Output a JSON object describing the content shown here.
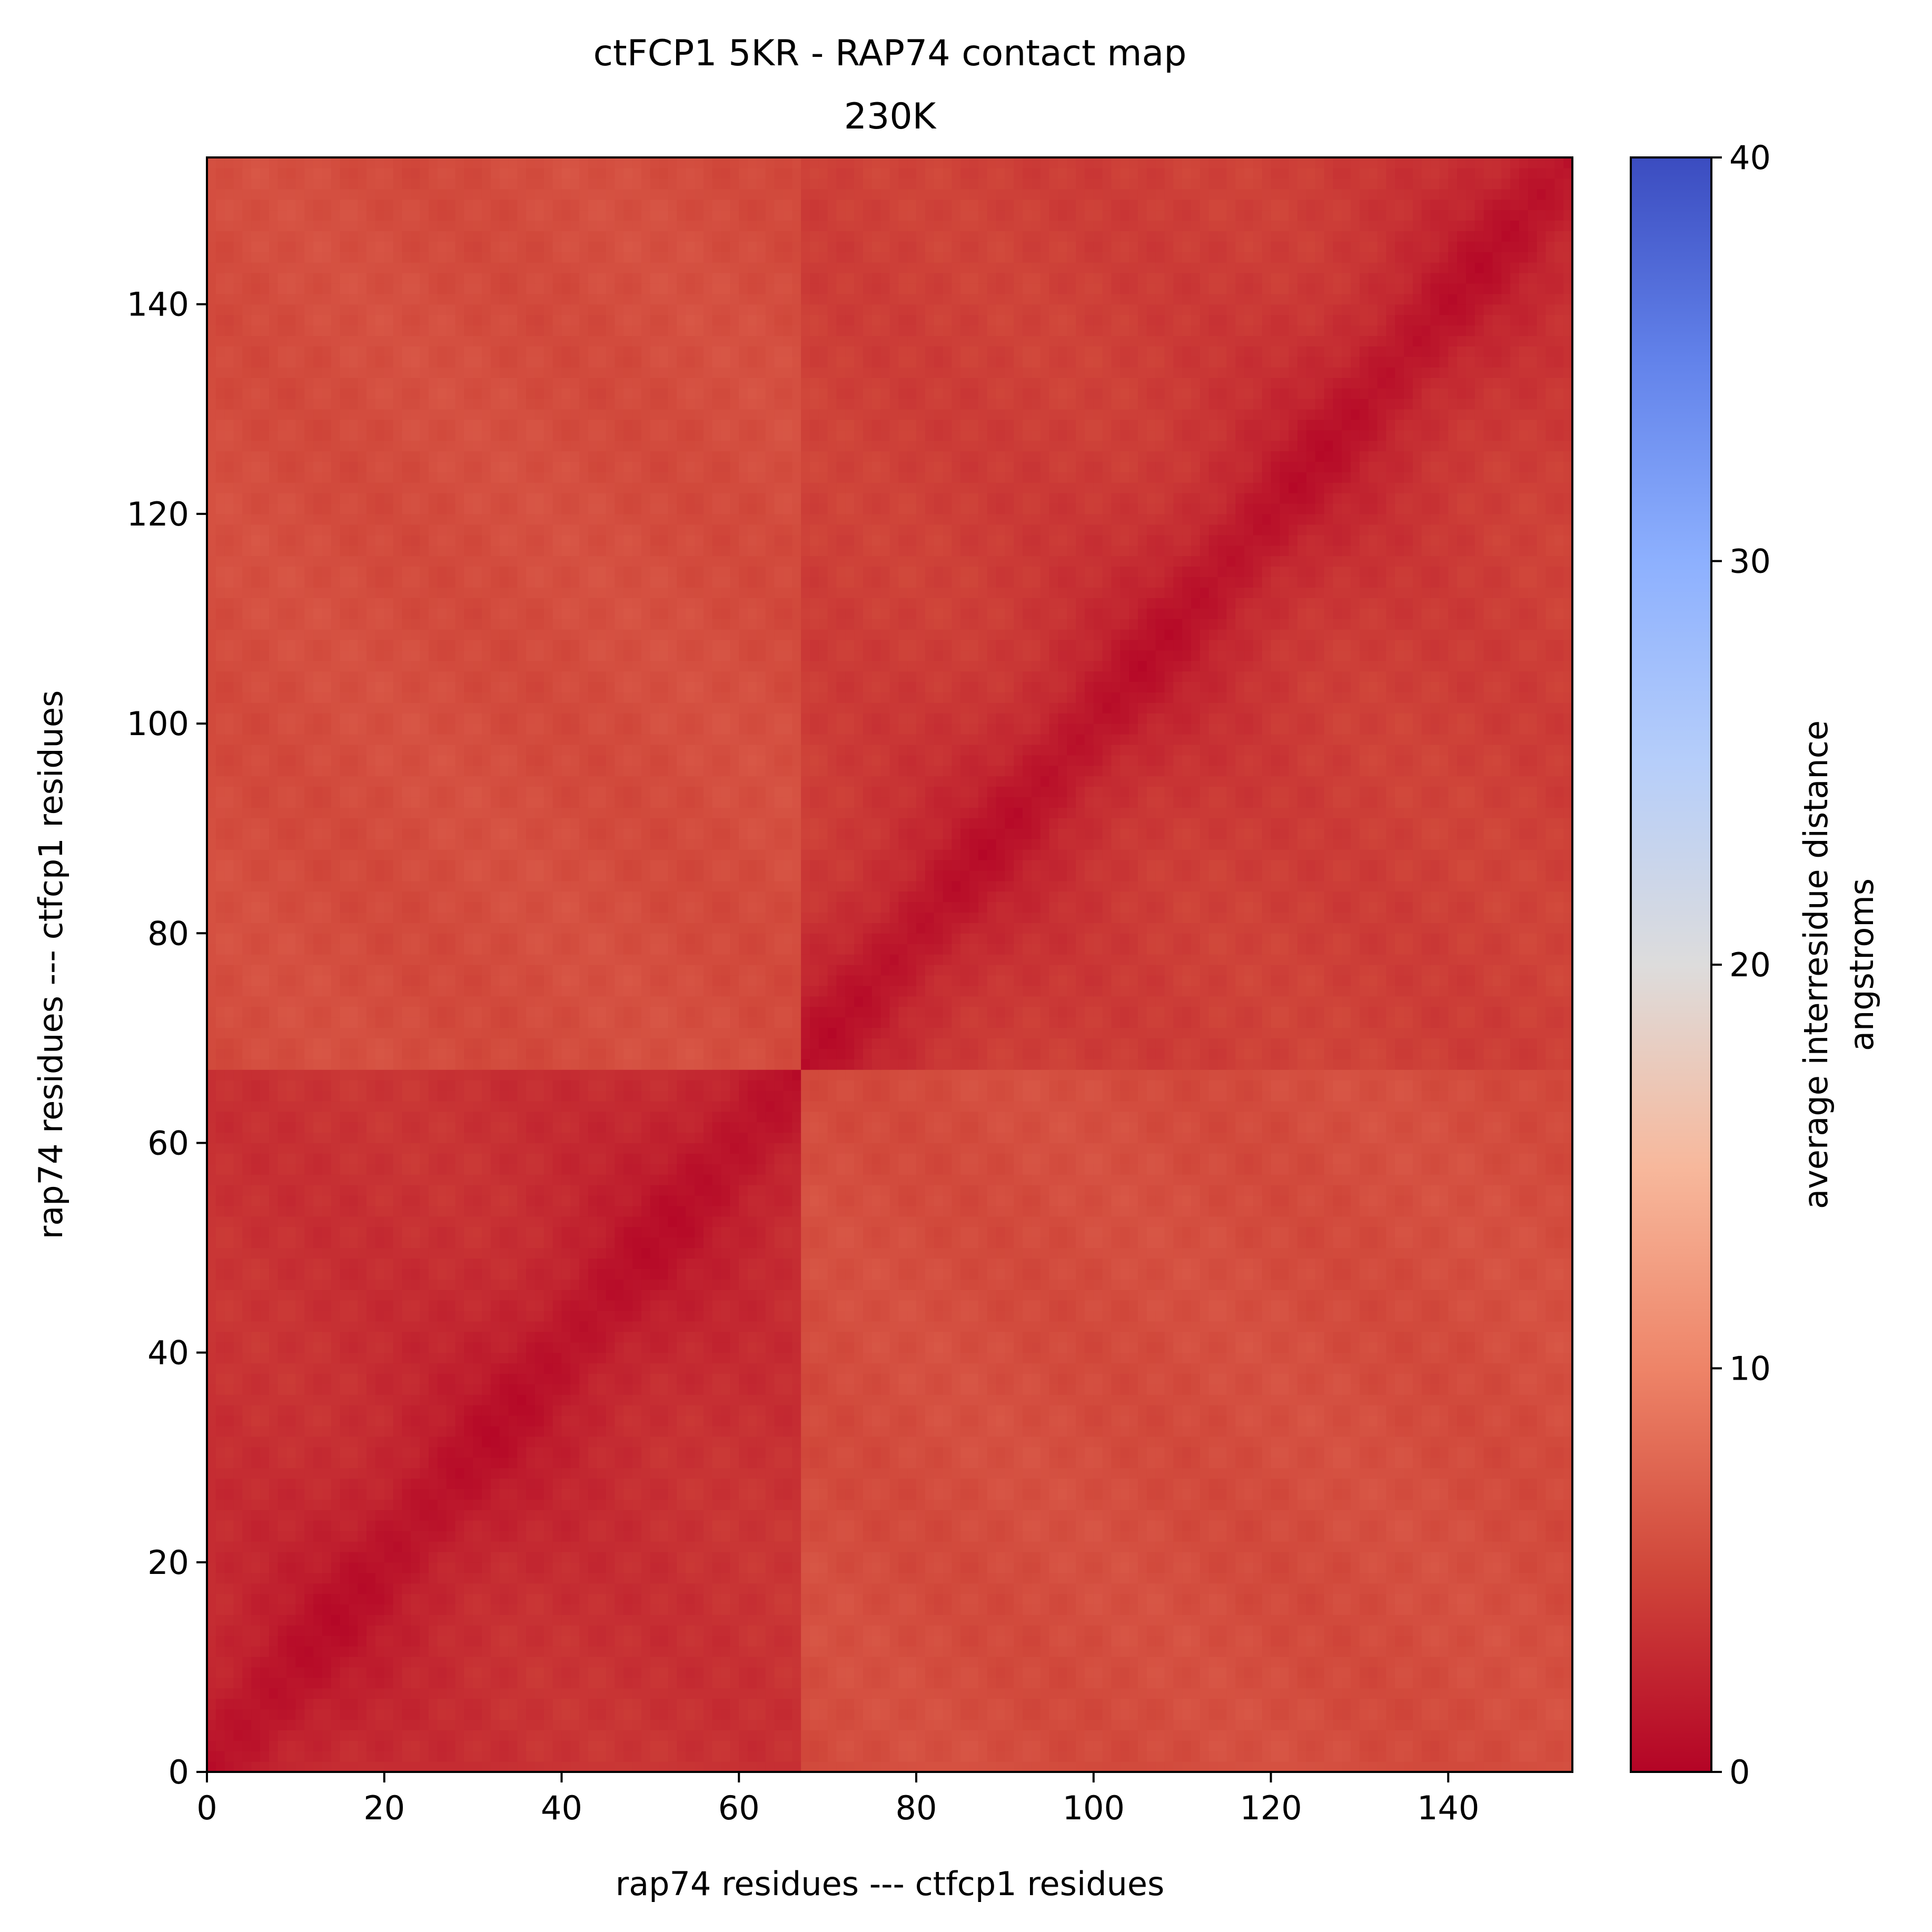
{
  "chart_data": {
    "type": "heatmap",
    "title": "ctFCP1 5KR - RAP74 contact map",
    "subtitle": "230K",
    "xlabel": "rap74 residues --- ctfcp1 residues",
    "ylabel": "rap74 residues --- ctfcp1 residues",
    "xlim": [
      0,
      154
    ],
    "ylim": [
      0,
      154
    ],
    "x_ticks": [
      "0",
      "20",
      "40",
      "60",
      "80",
      "100",
      "120",
      "140"
    ],
    "y_ticks": [
      "0",
      "20",
      "40",
      "60",
      "80",
      "100",
      "120",
      "140"
    ],
    "n_residues": 154,
    "block_boundary": 67,
    "colormap": "coolwarm_r",
    "colorbar": {
      "label_line1": "average interresidue distance",
      "label_line2": "angstroms",
      "min": 0,
      "max": 40,
      "ticks": [
        "0",
        "10",
        "20",
        "30",
        "40"
      ]
    },
    "approx_values_angstroms": {
      "diagonal": 0.5,
      "rap74_rap74_block": 3.5,
      "ctfcp1_ctfcp1_block": 4.5,
      "inter_block": 5.5
    },
    "grid": false
  }
}
